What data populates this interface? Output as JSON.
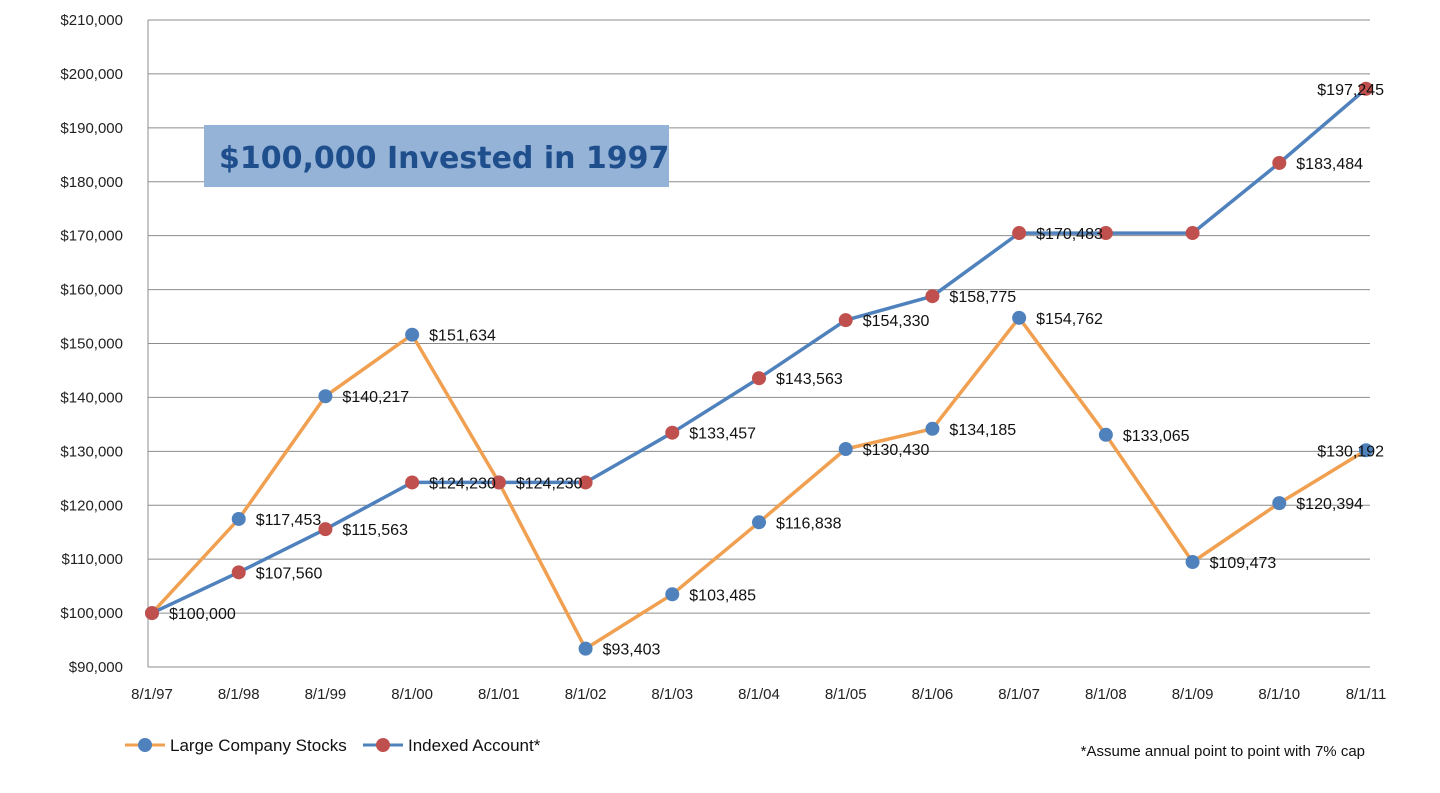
{
  "chart_data": {
    "type": "line",
    "title": "$100,000 Invested in 1997",
    "xlabel": "",
    "ylabel": "",
    "categories": [
      "8/1/97",
      "8/1/98",
      "8/1/99",
      "8/1/00",
      "8/1/01",
      "8/1/02",
      "8/1/03",
      "8/1/04",
      "8/1/05",
      "8/1/06",
      "8/1/07",
      "8/1/08",
      "8/1/09",
      "8/1/10",
      "8/1/11"
    ],
    "ylim": [
      90000,
      210000
    ],
    "y_ticks": [
      {
        "value": 210000,
        "label": "$210,000"
      },
      {
        "value": 200000,
        "label": "$200,000"
      },
      {
        "value": 190000,
        "label": "$190,000"
      },
      {
        "value": 180000,
        "label": "$180,000"
      },
      {
        "value": 170000,
        "label": "$170,000"
      },
      {
        "value": 160000,
        "label": "$160,000"
      },
      {
        "value": 150000,
        "label": "$150,000"
      },
      {
        "value": 140000,
        "label": "$140,000"
      },
      {
        "value": 130000,
        "label": "$130,000"
      },
      {
        "value": 120000,
        "label": "$120,000"
      },
      {
        "value": 110000,
        "label": "$110,000"
      },
      {
        "value": 100000,
        "label": "$100,000"
      },
      {
        "value": 90000,
        "label": "$90,000"
      }
    ],
    "grid": true,
    "legend_position": "bottom-left",
    "series": [
      {
        "name": "Large Company Stocks",
        "line_color": "#f0a050",
        "marker_color": "#4f81bd",
        "values": [
          100000,
          117453,
          140217,
          151634,
          124230,
          93403,
          103485,
          116838,
          130430,
          134185,
          154762,
          133065,
          109473,
          120394,
          130192
        ],
        "labels": [
          "",
          "$117,453",
          "$140,217",
          "$151,634",
          "",
          "$93,403",
          "$103,485",
          "$116,838",
          "$130,430",
          "$134,185",
          "$154,762",
          "$133,065",
          "$109,473",
          "$120,394",
          "$130,192"
        ]
      },
      {
        "name": "Indexed Account*",
        "line_color": "#4f81bd",
        "marker_color": "#c0504d",
        "values": [
          100000,
          107560,
          115563,
          124230,
          124230,
          124230,
          133457,
          143563,
          154330,
          158775,
          170483,
          170483,
          170483,
          183484,
          197245
        ],
        "labels": [
          "$100,000",
          "$107,560",
          "$115,563",
          "$124,230",
          "$124,230",
          "",
          "$133,457",
          "$143,563",
          "$154,330",
          "$158,775",
          "$170,483",
          "",
          "",
          "$183,484",
          "$197,245"
        ]
      }
    ],
    "footnote": "*Assume annual point to point with 7% cap"
  }
}
